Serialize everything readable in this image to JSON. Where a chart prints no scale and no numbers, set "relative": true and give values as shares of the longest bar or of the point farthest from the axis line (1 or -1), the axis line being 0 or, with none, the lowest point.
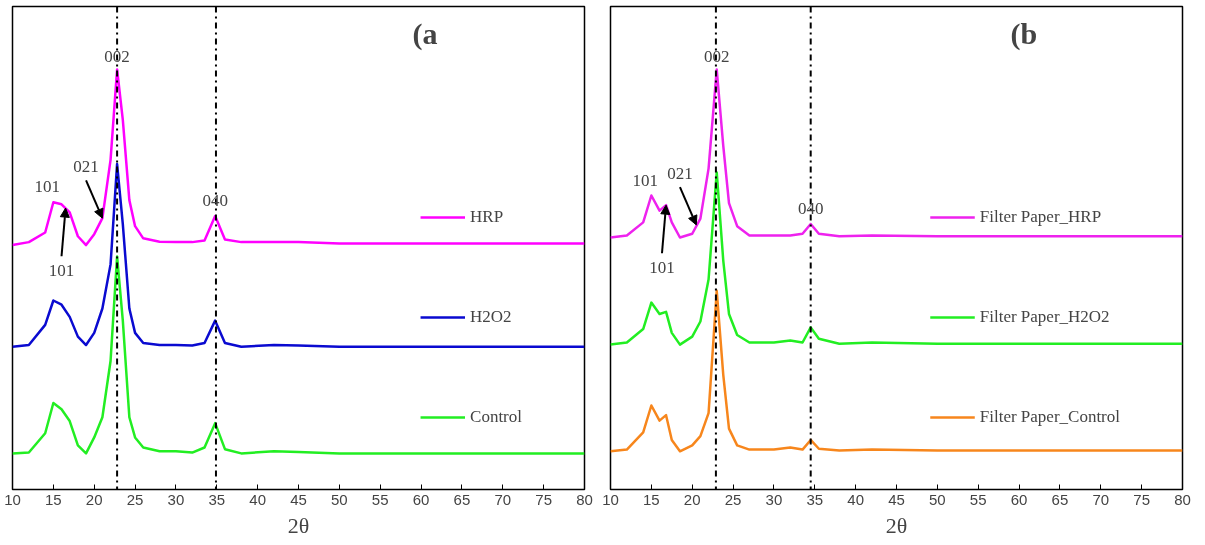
{
  "chart_data": [
    {
      "type": "line",
      "relative": true,
      "xlabel": "2θ",
      "xlim": [
        10,
        80
      ],
      "xticks": [
        10,
        15,
        20,
        25,
        30,
        35,
        40,
        45,
        50,
        55,
        60,
        65,
        70,
        75,
        80
      ],
      "grid": false,
      "legend": "right",
      "tick_labels": "x",
      "marker": "none",
      "line_style": "solid",
      "x": [
        10,
        12,
        14,
        15,
        16,
        17,
        18,
        19,
        20,
        21,
        22,
        22.8,
        23.5,
        24.3,
        25,
        26,
        28,
        30,
        32,
        33.5,
        34.8,
        36,
        38,
        42,
        45,
        50,
        60,
        70,
        80
      ],
      "series": [
        {
          "name": "HRP",
          "color": "#ff00ff",
          "values": [
            0.582,
            0.589,
            0.612,
            0.684,
            0.679,
            0.66,
            0.603,
            0.582,
            0.608,
            0.646,
            0.785,
            1.0,
            0.88,
            0.689,
            0.627,
            0.598,
            0.59,
            0.589,
            0.589,
            0.593,
            0.651,
            0.595,
            0.589,
            0.589,
            0.589,
            0.586,
            0.586,
            0.586,
            0.586
          ]
        },
        {
          "name": "H2O2",
          "color": "#0a0ad0",
          "values": [
            0.34,
            0.344,
            0.392,
            0.45,
            0.44,
            0.411,
            0.364,
            0.344,
            0.373,
            0.431,
            0.536,
            0.775,
            0.632,
            0.431,
            0.373,
            0.349,
            0.344,
            0.344,
            0.343,
            0.349,
            0.402,
            0.349,
            0.34,
            0.344,
            0.343,
            0.34,
            0.34,
            0.34,
            0.34
          ]
        },
        {
          "name": "Control",
          "color": "#22ee22",
          "values": [
            0.086,
            0.088,
            0.134,
            0.206,
            0.191,
            0.163,
            0.105,
            0.086,
            0.124,
            0.172,
            0.306,
            0.555,
            0.402,
            0.172,
            0.124,
            0.1,
            0.091,
            0.091,
            0.088,
            0.1,
            0.158,
            0.096,
            0.086,
            0.091,
            0.089,
            0.086,
            0.086,
            0.086,
            0.086
          ]
        }
      ],
      "ref_lines": [
        {
          "axis": "x",
          "value": 22.8,
          "color": "#000000",
          "line_style": "dashdot"
        },
        {
          "axis": "x",
          "value": 34.9,
          "color": "#000000",
          "line_style": "dashdot"
        }
      ],
      "annotations": [
        "(a",
        {
          "text": "002",
          "x": 22.8,
          "y": 1.0
        },
        {
          "text": "101",
          "x": 15,
          "y": 0.684
        },
        {
          "text": "021",
          "x": 21,
          "y": 0.646
        },
        {
          "text": "101",
          "x": 16.5,
          "y": 0.67
        },
        {
          "text": "040",
          "x": 34.8,
          "y": 0.651
        }
      ]
    },
    {
      "type": "line",
      "relative": true,
      "xlabel": "2θ",
      "xlim": [
        10,
        80
      ],
      "xticks": [
        10,
        15,
        20,
        25,
        30,
        35,
        40,
        45,
        50,
        55,
        60,
        65,
        70,
        75,
        80
      ],
      "grid": false,
      "legend": "right",
      "tick_labels": "x",
      "marker": "none",
      "line_style": "solid",
      "x": [
        10,
        12,
        14,
        15,
        16,
        16.8,
        17.5,
        18.5,
        20,
        21,
        22,
        23,
        23.8,
        24.5,
        25.5,
        27,
        30,
        32,
        33.5,
        34.5,
        35.5,
        38,
        42,
        50,
        60,
        70,
        80
      ],
      "series": [
        {
          "name": "Filter Paper_HRP",
          "color": "#ee22ee",
          "values": [
            0.6,
            0.605,
            0.636,
            0.7,
            0.664,
            0.677,
            0.636,
            0.6,
            0.609,
            0.645,
            0.764,
            1.0,
            0.818,
            0.682,
            0.627,
            0.605,
            0.605,
            0.605,
            0.609,
            0.632,
            0.609,
            0.603,
            0.605,
            0.603,
            0.603,
            0.603,
            0.603
          ]
        },
        {
          "name": "Filter Paper_H2O2",
          "color": "#22ee22",
          "values": [
            0.345,
            0.35,
            0.382,
            0.445,
            0.418,
            0.423,
            0.373,
            0.345,
            0.364,
            0.4,
            0.5,
            0.755,
            0.545,
            0.418,
            0.368,
            0.35,
            0.35,
            0.355,
            0.35,
            0.386,
            0.359,
            0.347,
            0.35,
            0.347,
            0.347,
            0.347,
            0.347
          ]
        },
        {
          "name": "Filter Paper_Control",
          "color": "#f7861c",
          "values": [
            0.091,
            0.095,
            0.136,
            0.2,
            0.164,
            0.177,
            0.118,
            0.091,
            0.105,
            0.127,
            0.182,
            0.473,
            0.273,
            0.145,
            0.105,
            0.095,
            0.095,
            0.1,
            0.095,
            0.118,
            0.097,
            0.093,
            0.095,
            0.093,
            0.093,
            0.093,
            0.093
          ]
        }
      ],
      "ref_lines": [
        {
          "axis": "x",
          "value": 22.9,
          "color": "#000000",
          "line_style": "dashdot"
        },
        {
          "axis": "x",
          "value": 34.5,
          "color": "#000000",
          "line_style": "dashdot"
        }
      ],
      "annotations": [
        "(b",
        {
          "text": "002",
          "x": 23,
          "y": 1.0
        },
        {
          "text": "101",
          "x": 15,
          "y": 0.7
        },
        {
          "text": "021",
          "x": 20.5,
          "y": 0.63
        },
        {
          "text": "101",
          "x": 16.8,
          "y": 0.677
        },
        {
          "text": "040",
          "x": 34.5,
          "y": 0.632
        }
      ]
    }
  ]
}
